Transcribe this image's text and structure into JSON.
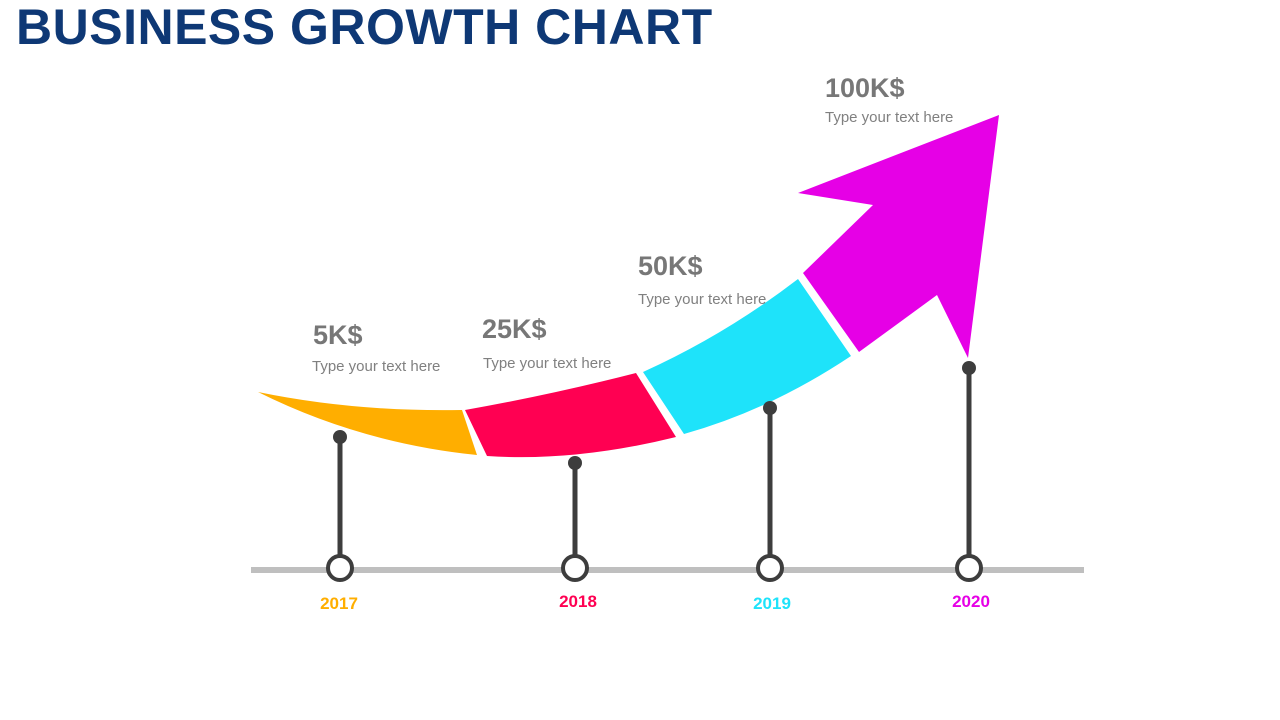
{
  "title": "BUSINESS GROWTH CHART",
  "milestones": [
    {
      "year": "2017",
      "value": "5K$",
      "text": "Type your text here",
      "color": "#ffae00"
    },
    {
      "year": "2018",
      "value": "25K$",
      "text": "Type your text here",
      "color": "#ff0052"
    },
    {
      "year": "2019",
      "value": "50K$",
      "text": "Type your text here",
      "color": "#1ee3fa"
    },
    {
      "year": "2020",
      "value": "100K$",
      "text": "Type your text here",
      "color": "#e600e6"
    }
  ],
  "colors": {
    "title": "#0e3875",
    "stem": "#3d3d3d",
    "baseline": "#bfbfbf",
    "value_text": "#777777",
    "desc_text": "#808080"
  }
}
